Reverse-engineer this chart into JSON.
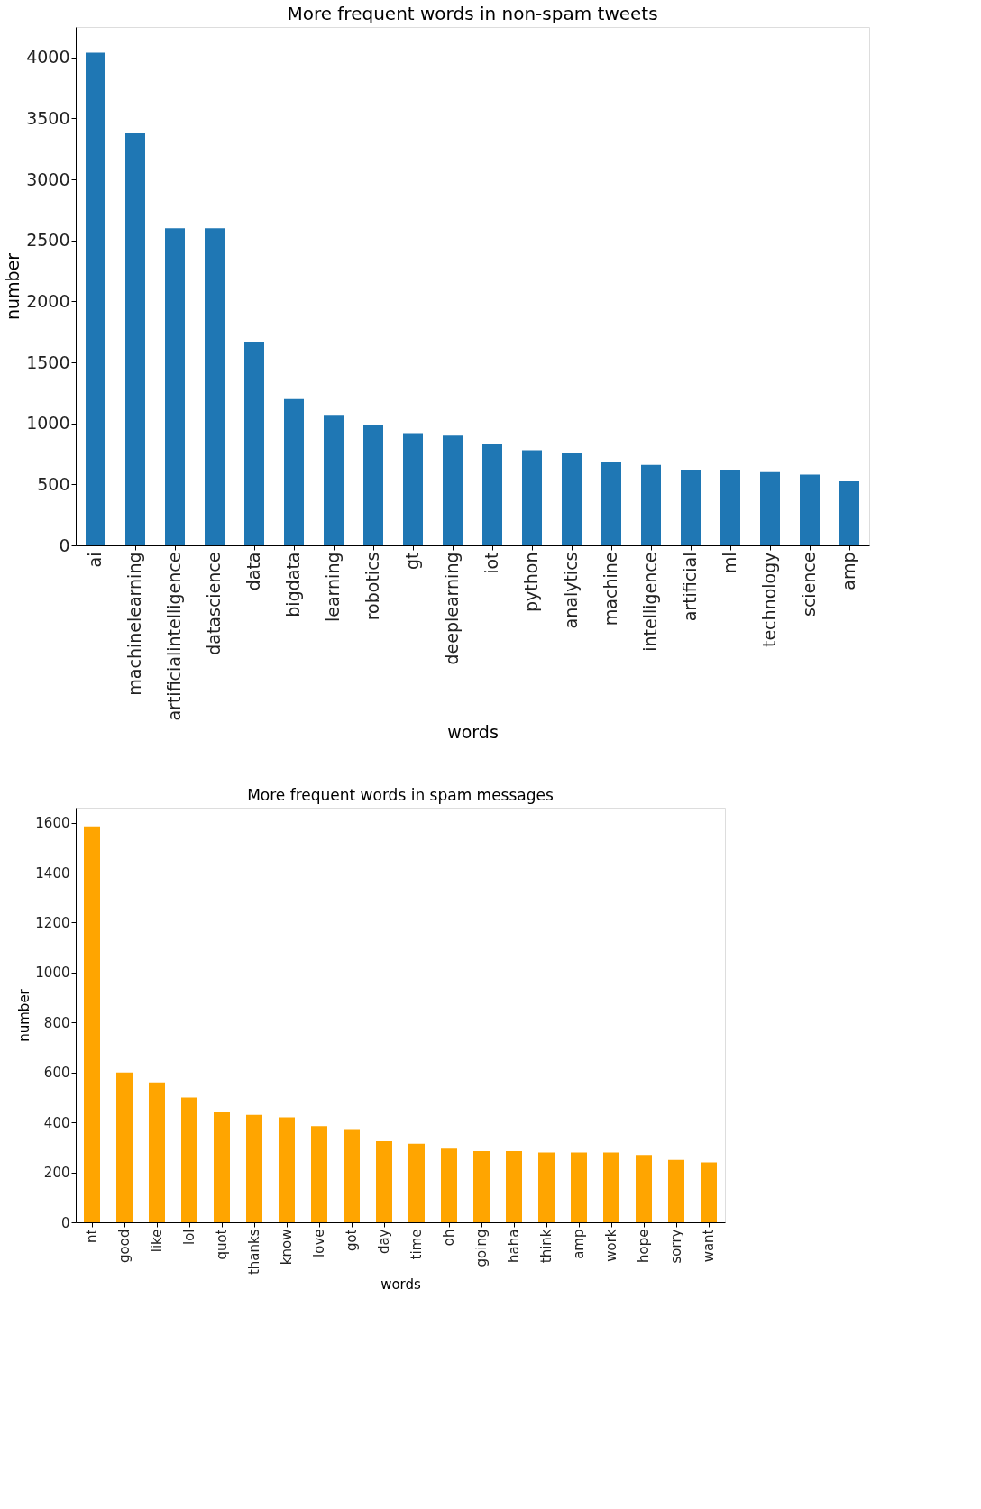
{
  "chart_data": [
    {
      "type": "bar",
      "title": "More frequent words in non-spam tweets",
      "xlabel": "words",
      "ylabel": "number",
      "categories": [
        "ai",
        "machinelearning",
        "artificialintelligence",
        "datascience",
        "data",
        "bigdata",
        "learning",
        "robotics",
        "gt",
        "deeplearning",
        "iot",
        "python",
        "analytics",
        "machine",
        "intelligence",
        "artificial",
        "ml",
        "technology",
        "science",
        "amp"
      ],
      "values": [
        4040,
        3380,
        2600,
        2600,
        1670,
        1200,
        1070,
        990,
        920,
        900,
        830,
        780,
        760,
        680,
        660,
        620,
        620,
        600,
        580,
        525
      ],
      "color": "#1f77b4",
      "ylim": [
        0,
        4250
      ],
      "yticks": [
        0,
        500,
        1000,
        1500,
        2000,
        2500,
        3000,
        3500,
        4000
      ]
    },
    {
      "type": "bar",
      "title": "More frequent words in spam messages",
      "xlabel": "words",
      "ylabel": "number",
      "categories": [
        "nt",
        "good",
        "like",
        "lol",
        "quot",
        "thanks",
        "know",
        "love",
        "got",
        "day",
        "time",
        "oh",
        "going",
        "haha",
        "think",
        "amp",
        "work",
        "hope",
        "sorry",
        "want"
      ],
      "values": [
        1585,
        600,
        560,
        500,
        440,
        430,
        420,
        385,
        370,
        325,
        315,
        295,
        285,
        285,
        280,
        280,
        280,
        270,
        250,
        240
      ],
      "color": "#ffa500",
      "ylim": [
        0,
        1660
      ],
      "yticks": [
        0,
        200,
        400,
        600,
        800,
        1000,
        1200,
        1400,
        1600
      ]
    }
  ]
}
